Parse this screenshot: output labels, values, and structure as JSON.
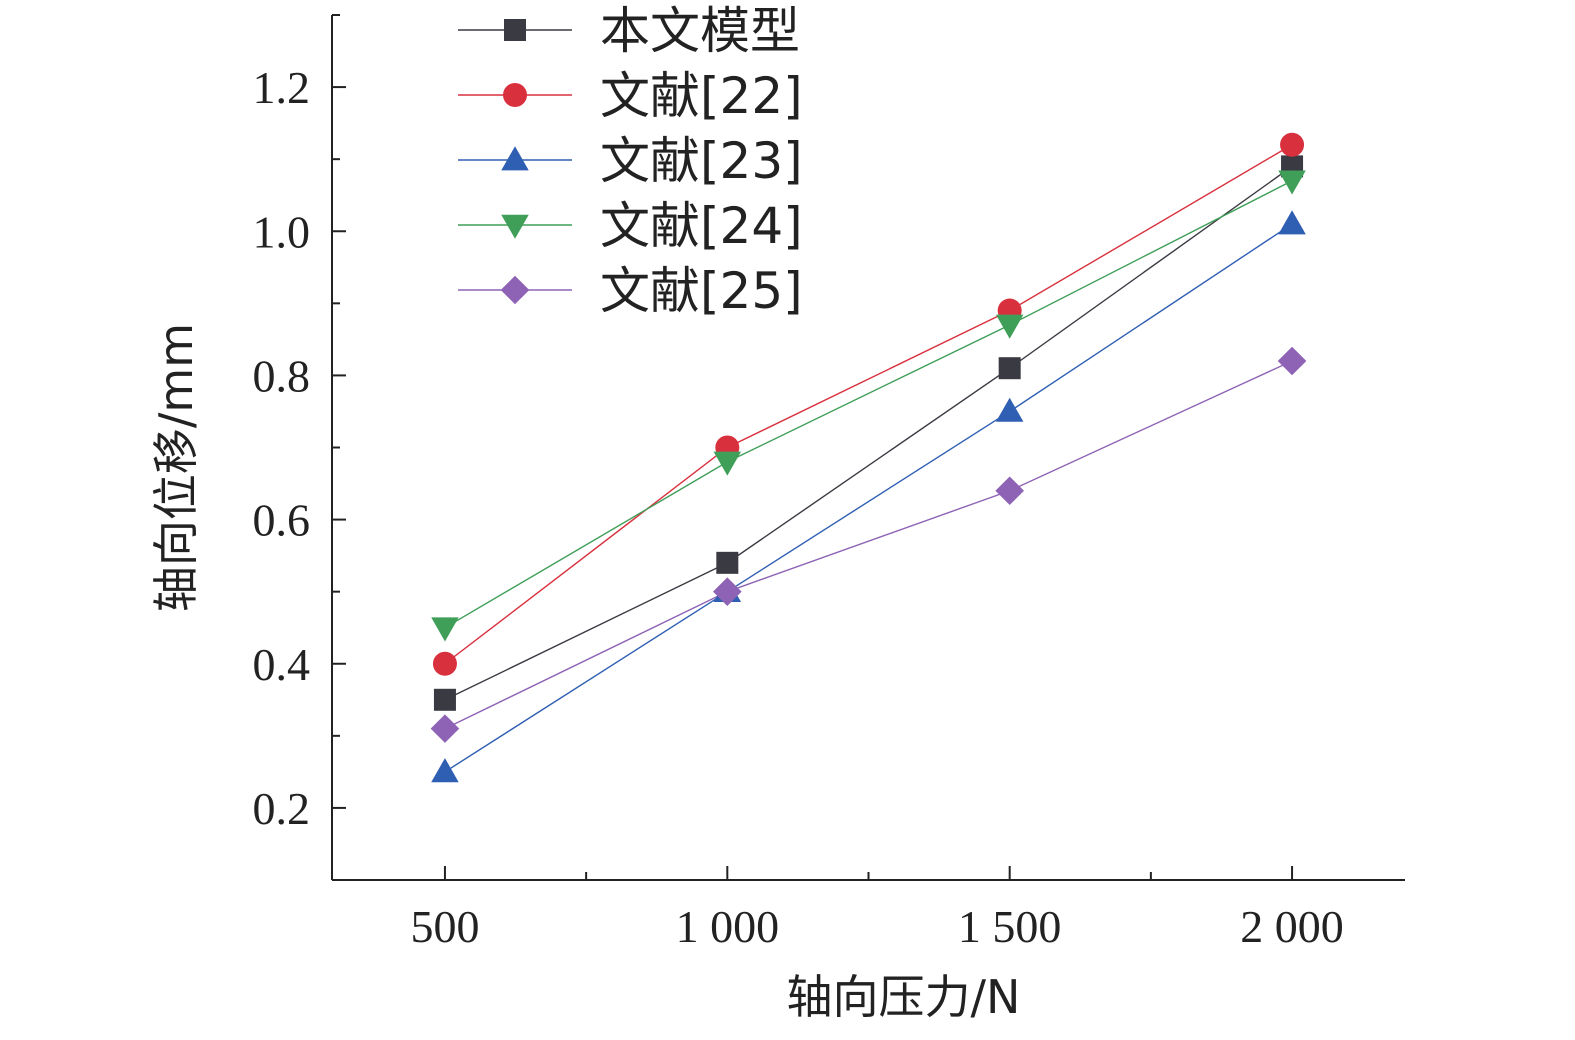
{
  "chart_data": {
    "type": "line",
    "title": "",
    "xlabel": "轴向压力/N",
    "ylabel": "轴向位移/mm",
    "x": [
      500,
      1000,
      1500,
      2000
    ],
    "x_tick_labels": [
      "500",
      "1 000",
      "1 500",
      "2 000"
    ],
    "xlim": [
      300,
      2200
    ],
    "y_ticks": [
      0.2,
      0.4,
      0.6,
      0.8,
      1.0,
      1.2
    ],
    "y_tick_labels": [
      "0.2",
      "0.4",
      "0.6",
      "0.8",
      "1.0",
      "1.2"
    ],
    "ylim": [
      0.1,
      1.3
    ],
    "grid": false,
    "legend_position": "top-left",
    "series": [
      {
        "name": "本文模型",
        "values": [
          0.35,
          0.54,
          0.81,
          1.09
        ],
        "color": "#3a3a42",
        "marker": "square"
      },
      {
        "name": "文献[22]",
        "values": [
          0.4,
          0.7,
          0.89,
          1.12
        ],
        "color": "#d9303e",
        "marker": "circle"
      },
      {
        "name": "文献[23]",
        "values": [
          0.25,
          0.5,
          0.75,
          1.01
        ],
        "color": "#2f5fb3",
        "marker": "triangle-up"
      },
      {
        "name": "文献[24]",
        "values": [
          0.45,
          0.68,
          0.87,
          1.07
        ],
        "color": "#3f9e58",
        "marker": "triangle-down"
      },
      {
        "name": "文献[25]",
        "values": [
          0.31,
          0.5,
          0.64,
          0.82
        ],
        "color": "#8e63b5",
        "marker": "diamond"
      }
    ]
  }
}
